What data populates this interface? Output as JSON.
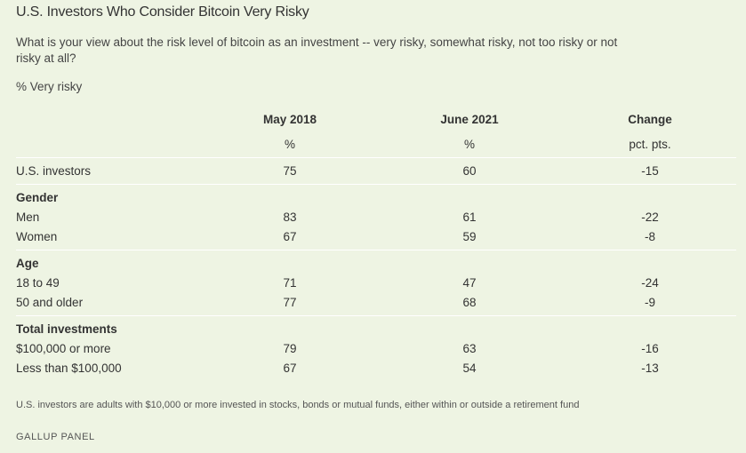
{
  "title": "U.S. Investors Who Consider Bitcoin Very Risky",
  "question": "What is your view about the risk level of bitcoin as an investment -- very risky, somewhat risky, not too risky or not risky at all?",
  "measure": "% Very risky",
  "columns": [
    {
      "header": "May 2018",
      "unit": "%"
    },
    {
      "header": "June 2021",
      "unit": "%"
    },
    {
      "header": "Change",
      "unit": "pct. pts."
    }
  ],
  "overall": {
    "label": "U.S. investors",
    "values": [
      "75",
      "60",
      "-15"
    ]
  },
  "groups": [
    {
      "name": "Gender",
      "rows": [
        {
          "label": "Men",
          "values": [
            "83",
            "61",
            "-22"
          ]
        },
        {
          "label": "Women",
          "values": [
            "67",
            "59",
            "-8"
          ]
        }
      ]
    },
    {
      "name": "Age",
      "rows": [
        {
          "label": "18 to 49",
          "values": [
            "71",
            "47",
            "-24"
          ]
        },
        {
          "label": "50 and older",
          "values": [
            "77",
            "68",
            "-9"
          ]
        }
      ]
    },
    {
      "name": "Total investments",
      "rows": [
        {
          "label": "$100,000 or more",
          "values": [
            "79",
            "63",
            "-16"
          ]
        },
        {
          "label": "Less than $100,000",
          "values": [
            "67",
            "54",
            "-13"
          ]
        }
      ]
    }
  ],
  "note": "U.S. investors are adults with $10,000 or more invested in stocks, bonds or mutual funds, either within or outside a retirement fund",
  "source": "GALLUP PANEL"
}
